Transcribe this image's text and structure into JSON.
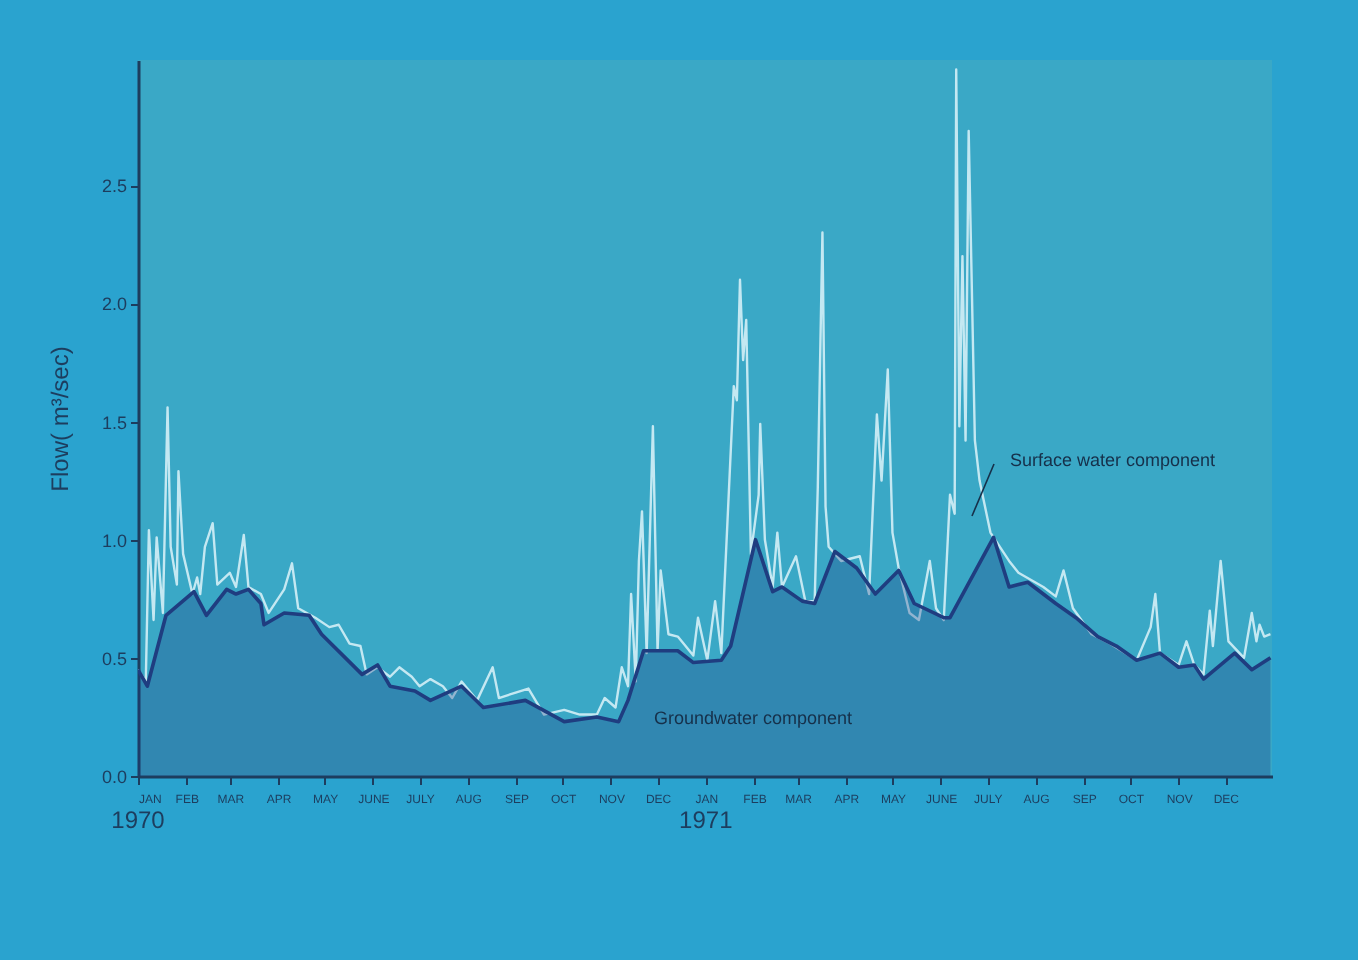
{
  "chart_data": {
    "type": "line",
    "ylabel": "Flow( m³/sec)",
    "xlim": [
      "1970-01-01",
      "1971-12-31"
    ],
    "xticks": [
      {
        "value": "1970-01-01",
        "label": "JAN"
      },
      {
        "value": "1970-02-01",
        "label": "FEB"
      },
      {
        "value": "1970-03-01",
        "label": "MAR"
      },
      {
        "value": "1970-04-01",
        "label": "APR"
      },
      {
        "value": "1970-05-01",
        "label": "MAY"
      },
      {
        "value": "1970-06-01",
        "label": "JUNE"
      },
      {
        "value": "1970-07-01",
        "label": "JULY"
      },
      {
        "value": "1970-08-01",
        "label": "AUG"
      },
      {
        "value": "1970-09-01",
        "label": "SEP"
      },
      {
        "value": "1970-10-01",
        "label": "OCT"
      },
      {
        "value": "1970-11-01",
        "label": "NOV"
      },
      {
        "value": "1970-12-01",
        "label": "DEC"
      },
      {
        "value": "1971-01-01",
        "label": "JAN"
      },
      {
        "value": "1971-02-01",
        "label": "FEB"
      },
      {
        "value": "1971-03-01",
        "label": "MAR"
      },
      {
        "value": "1971-04-01",
        "label": "APR"
      },
      {
        "value": "1971-05-01",
        "label": "MAY"
      },
      {
        "value": "1971-06-01",
        "label": "JUNE"
      },
      {
        "value": "1971-07-01",
        "label": "JULY"
      },
      {
        "value": "1971-08-01",
        "label": "AUG"
      },
      {
        "value": "1971-09-01",
        "label": "SEP"
      },
      {
        "value": "1971-10-01",
        "label": "OCT"
      },
      {
        "value": "1971-11-01",
        "label": "NOV"
      },
      {
        "value": "1971-12-01",
        "label": "DEC"
      }
    ],
    "ylim": [
      0,
      3.03
    ],
    "yticks": [
      {
        "value": 0,
        "label": "0.0"
      },
      {
        "value": 0.5,
        "label": "0.5"
      },
      {
        "value": 1,
        "label": "1.0"
      },
      {
        "value": 1.5,
        "label": "1.5"
      },
      {
        "value": 2,
        "label": "2.0"
      },
      {
        "value": 2.5,
        "label": "2.5"
      }
    ],
    "grid": false,
    "annotations": [
      "1970",
      "1971"
    ],
    "series": [
      {
        "name": "Surface water component",
        "type": "line",
        "color": "#c4e8f2",
        "x": [
          "1970-01-01",
          "1970-01-06",
          "1970-01-08",
          "1970-01-11",
          "1970-01-13",
          "1970-01-17",
          "1970-01-20",
          "1970-01-22",
          "1970-01-26",
          "1970-01-27",
          "1970-01-30",
          "1970-02-05",
          "1970-02-08",
          "1970-02-10",
          "1970-02-13",
          "1970-02-18",
          "1970-02-21",
          "1970-03-01",
          "1970-03-05",
          "1970-03-10",
          "1970-03-13",
          "1970-03-21",
          "1970-03-26",
          "1970-04-05",
          "1970-04-10",
          "1970-04-14",
          "1970-04-25",
          "1970-05-04",
          "1970-05-10",
          "1970-05-17",
          "1970-05-24",
          "1970-05-28",
          "1970-06-04",
          "1970-06-12",
          "1970-06-18",
          "1970-06-26",
          "1970-07-01",
          "1970-07-08",
          "1970-07-16",
          "1970-07-22",
          "1970-07-28",
          "1970-08-07",
          "1970-08-17",
          "1970-08-21",
          "1970-09-09",
          "1970-09-19",
          "1970-10-02",
          "1970-10-12",
          "1970-10-23",
          "1970-10-28",
          "1970-11-04",
          "1970-11-08",
          "1970-11-12",
          "1970-11-14",
          "1970-11-17",
          "1970-11-19",
          "1970-11-21",
          "1970-11-24",
          "1970-11-28",
          "1970-12-01",
          "1970-12-03",
          "1970-12-08",
          "1970-12-14",
          "1970-12-24",
          "1970-12-27",
          "1971-01-02",
          "1971-01-07",
          "1971-01-11",
          "1971-01-19",
          "1971-01-21",
          "1971-01-23",
          "1971-01-25",
          "1971-01-27",
          "1971-01-30",
          "1971-02-04",
          "1971-02-05",
          "1971-02-08",
          "1971-02-13",
          "1971-02-16",
          "1971-02-19",
          "1971-02-28",
          "1971-03-06",
          "1971-03-12",
          "1971-03-14",
          "1971-03-17",
          "1971-03-19",
          "1971-03-21",
          "1971-03-29",
          "1971-04-10",
          "1971-04-16",
          "1971-04-21",
          "1971-04-24",
          "1971-04-28",
          "1971-05-01",
          "1971-05-05",
          "1971-05-12",
          "1971-05-18",
          "1971-05-25",
          "1971-05-29",
          "1971-06-03",
          "1971-06-07",
          "1971-06-10",
          "1971-06-11",
          "1971-06-13",
          "1971-06-15",
          "1971-06-17",
          "1971-06-19",
          "1971-06-23",
          "1971-06-26",
          "1971-07-03",
          "1971-07-15",
          "1971-07-21",
          "1971-08-06",
          "1971-08-14",
          "1971-08-19",
          "1971-08-25",
          "1971-09-06",
          "1971-09-18",
          "1971-10-05",
          "1971-10-14",
          "1971-10-17",
          "1971-10-20",
          "1971-11-01",
          "1971-11-06",
          "1971-11-11",
          "1971-11-17",
          "1971-11-21",
          "1971-11-23",
          "1971-11-28",
          "1971-12-03",
          "1971-12-13",
          "1971-12-18",
          "1971-12-21",
          "1971-12-23",
          "1971-12-26",
          "1971-12-30"
        ],
        "values": [
          0.45,
          0.4,
          1.04,
          0.66,
          1.01,
          0.69,
          1.56,
          0.97,
          0.81,
          1.29,
          0.94,
          0.77,
          0.84,
          0.77,
          0.97,
          1.07,
          0.81,
          0.86,
          0.8,
          1.02,
          0.8,
          0.77,
          0.69,
          0.79,
          0.9,
          0.71,
          0.67,
          0.63,
          0.64,
          0.56,
          0.55,
          0.43,
          0.46,
          0.42,
          0.46,
          0.42,
          0.38,
          0.41,
          0.38,
          0.33,
          0.4,
          0.32,
          0.46,
          0.33,
          0.37,
          0.26,
          0.28,
          0.26,
          0.26,
          0.33,
          0.29,
          0.46,
          0.38,
          0.77,
          0.4,
          0.91,
          1.12,
          0.52,
          1.48,
          0.53,
          0.87,
          0.6,
          0.59,
          0.51,
          0.67,
          0.49,
          0.74,
          0.52,
          1.65,
          1.59,
          2.1,
          1.76,
          1.93,
          0.94,
          1.19,
          1.49,
          1.0,
          0.8,
          1.03,
          0.8,
          0.93,
          0.74,
          0.74,
          1.22,
          2.3,
          1.14,
          0.97,
          0.91,
          0.93,
          0.77,
          1.53,
          1.25,
          1.72,
          1.03,
          0.88,
          0.69,
          0.66,
          0.91,
          0.71,
          0.66,
          1.19,
          1.11,
          2.99,
          1.48,
          2.2,
          1.42,
          2.73,
          1.42,
          1.25,
          1.03,
          0.91,
          0.86,
          0.8,
          0.76,
          0.87,
          0.71,
          0.6,
          0.56,
          0.49,
          0.63,
          0.77,
          0.52,
          0.47,
          0.57,
          0.47,
          0.43,
          0.7,
          0.55,
          0.91,
          0.57,
          0.5,
          0.69,
          0.57,
          0.64,
          0.59,
          0.6
        ]
      },
      {
        "name": "Groundwater component",
        "type": "area",
        "color": "#1f3d80",
        "x": [
          "1970-01-01",
          "1970-01-07",
          "1970-01-19",
          "1970-02-06",
          "1970-02-14",
          "1970-02-27",
          "1970-03-05",
          "1970-03-13",
          "1970-03-21",
          "1970-03-23",
          "1970-04-05",
          "1970-04-21",
          "1970-04-29",
          "1970-05-25",
          "1970-06-04",
          "1970-06-12",
          "1970-06-28",
          "1970-07-08",
          "1970-07-28",
          "1970-08-11",
          "1970-09-07",
          "1970-10-02",
          "1970-10-23",
          "1970-11-06",
          "1970-11-12",
          "1970-11-22",
          "1970-12-14",
          "1970-12-24",
          "1971-01-11",
          "1971-01-17",
          "1971-02-02",
          "1971-02-13",
          "1971-02-19",
          "1971-03-04",
          "1971-03-12",
          "1971-03-25",
          "1971-04-08",
          "1971-04-20",
          "1971-05-05",
          "1971-05-15",
          "1971-06-03",
          "1971-06-07",
          "1971-07-05",
          "1971-07-15",
          "1971-07-27",
          "1971-08-14",
          "1971-08-27",
          "1971-09-10",
          "1971-09-22",
          "1971-10-05",
          "1971-10-20",
          "1971-11-01",
          "1971-11-11",
          "1971-11-17",
          "1971-12-07",
          "1971-12-18",
          "1971-12-30"
        ],
        "values": [
          0.45,
          0.38,
          0.68,
          0.78,
          0.68,
          0.79,
          0.77,
          0.79,
          0.73,
          0.64,
          0.69,
          0.68,
          0.6,
          0.43,
          0.47,
          0.38,
          0.36,
          0.32,
          0.38,
          0.29,
          0.32,
          0.23,
          0.25,
          0.23,
          0.32,
          0.53,
          0.53,
          0.48,
          0.49,
          0.55,
          1.0,
          0.78,
          0.8,
          0.74,
          0.73,
          0.95,
          0.88,
          0.77,
          0.87,
          0.73,
          0.67,
          0.67,
          1.01,
          0.8,
          0.82,
          0.73,
          0.67,
          0.59,
          0.55,
          0.49,
          0.52,
          0.46,
          0.47,
          0.41,
          0.52,
          0.45,
          0.5
        ]
      }
    ]
  }
}
